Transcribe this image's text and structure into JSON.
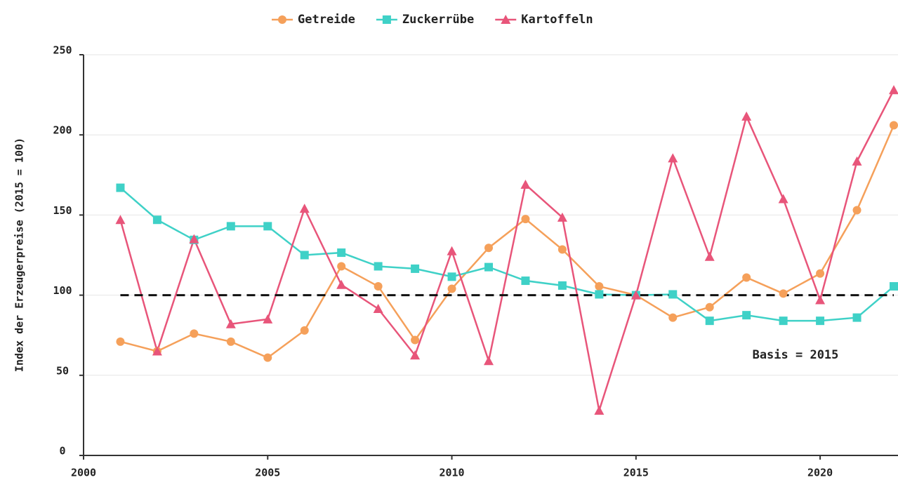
{
  "chart_data": {
    "type": "line",
    "ylabel": "Index der Erzeugerpreise (2015 = 100)",
    "annotation": "Basis = 2015",
    "reference_line": 100,
    "x": [
      2001,
      2002,
      2003,
      2004,
      2005,
      2006,
      2007,
      2008,
      2009,
      2010,
      2011,
      2012,
      2013,
      2014,
      2015,
      2016,
      2017,
      2018,
      2019,
      2020,
      2021,
      2022
    ],
    "series": [
      {
        "name": "Getreide",
        "color": "#f5a05a",
        "marker": "circle",
        "values": [
          71,
          65,
          76,
          71,
          61,
          78,
          118,
          105.5,
          72,
          104,
          129.5,
          147.5,
          128.5,
          105.5,
          100,
          86,
          92.5,
          111,
          101,
          113.5,
          153,
          206
        ]
      },
      {
        "name": "Zuckerrübe",
        "color": "#3fd1c7",
        "marker": "square",
        "values": [
          167,
          147,
          134.5,
          143,
          143,
          125,
          126.5,
          118,
          116.5,
          111.5,
          117.5,
          109,
          106,
          100.5,
          100,
          100.5,
          84,
          87.5,
          84,
          84,
          86,
          105.5
        ]
      },
      {
        "name": "Kartoffeln",
        "color": "#e8557a",
        "marker": "triangle",
        "values": [
          147,
          65,
          135,
          82,
          85,
          154,
          106.5,
          91.5,
          62.5,
          127.5,
          59,
          169,
          148.5,
          28,
          100,
          185.5,
          124,
          211.5,
          160,
          97,
          183.5,
          228
        ]
      }
    ],
    "xlim": [
      2000,
      2022
    ],
    "xticks": [
      2000,
      2005,
      2010,
      2015,
      2020
    ],
    "ylim": [
      0,
      250
    ],
    "yticks": [
      0,
      50,
      100,
      150,
      200,
      250
    ],
    "grid": true
  }
}
